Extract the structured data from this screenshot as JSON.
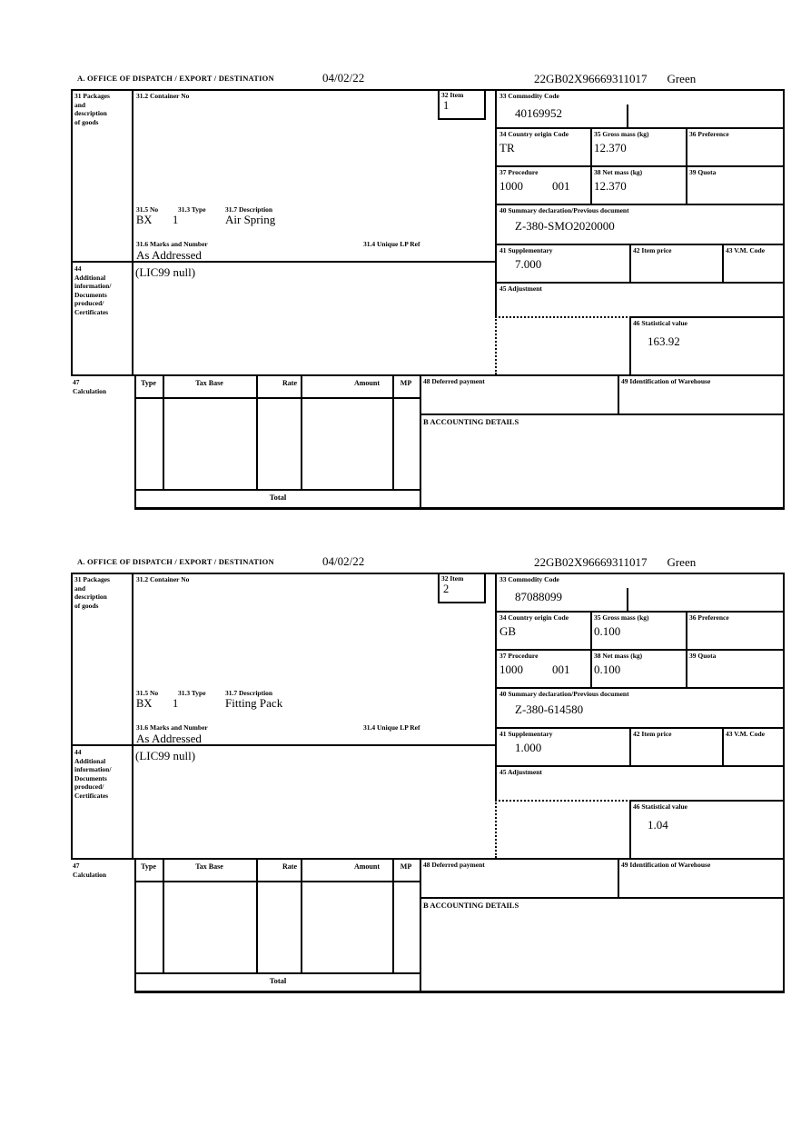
{
  "page_bg": "#ffffff",
  "ink_color": "#000000",
  "labels": {
    "office": "A.  OFFICE OF DISPATCH / EXPORT / DESTINATION",
    "box31": "31 Packages\nand\ndescription\nof goods",
    "box31_2": "31.2 Container No",
    "box32": "32 Item",
    "box33": "33 Commodity Code",
    "box31_5": "31.5 No",
    "box31_3": "31.3 Type",
    "box31_7": "31.7 Description",
    "box31_6": "31.6 Marks and Number",
    "box31_4": "31.4 Unique LP Ref",
    "box34": "34 Country origin Code",
    "box35": "35 Gross mass (kg)",
    "box36": "36 Preference",
    "box37": "37 Procedure",
    "box38": "38 Net mass (kg)",
    "box39": "39 Quota",
    "box40": "40 Summary declaration/Previous document",
    "box41": "41 Supplementary",
    "box42": "42 Item price",
    "box43": "43 V.M. Code",
    "box44": "44\nAdditional\ninformation/\nDocuments\nproduced/\nCertificates",
    "box45": "45 Adjustment",
    "box46": "46 Statistical value",
    "box47": "47\nCalculation",
    "box48": "48 Deferred payment",
    "box49": "49 Identification of Warehouse",
    "accounting": "B ACCOUNTING DETAILS",
    "calc": {
      "type": "Type",
      "tax_base": "Tax Base",
      "rate": "Rate",
      "amount": "Amount",
      "mp": "MP"
    },
    "total": "Total"
  },
  "items": [
    {
      "date": "04/02/22",
      "reference": "22GB02X96669311017",
      "routing": "Green",
      "item_no": "1",
      "container_no": "",
      "commodity_code": "40169952",
      "country_origin": "TR",
      "gross_mass": "12.370",
      "preference": "",
      "procedure": "1000",
      "procedure_extra": "001",
      "net_mass": "12.370",
      "quota": "",
      "package_no": "BX",
      "package_type": "1",
      "description": "Air Spring",
      "marks_numbers": "As Addressed",
      "unique_lp_ref": "",
      "summary_declaration": "Z-380-SMO2020000",
      "supplementary": "7.000",
      "item_price": "",
      "vm_code": "",
      "additional_info": "(LIC99 null)",
      "adjustment": "",
      "statistical_value": "163.92",
      "deferred_payment": "",
      "warehouse_id": ""
    },
    {
      "date": "04/02/22",
      "reference": "22GB02X96669311017",
      "routing": "Green",
      "item_no": "2",
      "container_no": "",
      "commodity_code": "87088099",
      "country_origin": "GB",
      "gross_mass": "0.100",
      "preference": "",
      "procedure": "1000",
      "procedure_extra": "001",
      "net_mass": "0.100",
      "quota": "",
      "package_no": "BX",
      "package_type": "1",
      "description": "Fitting Pack",
      "marks_numbers": "As Addressed",
      "unique_lp_ref": "",
      "summary_declaration": "Z-380-614580",
      "supplementary": "1.000",
      "item_price": "",
      "vm_code": "",
      "additional_info": "(LIC99 null)",
      "adjustment": "",
      "statistical_value": "1.04",
      "deferred_payment": "",
      "warehouse_id": ""
    }
  ]
}
